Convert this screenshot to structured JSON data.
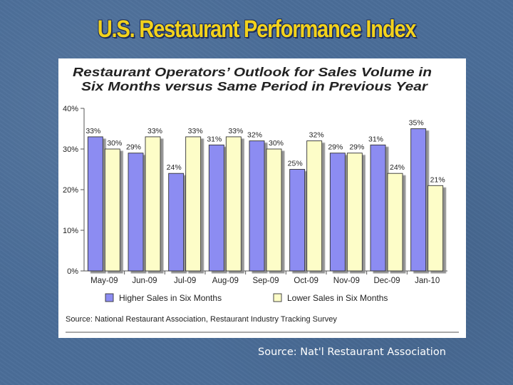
{
  "slide": {
    "title": "U.S. Restaurant Performance Index",
    "source_note": "Source: Nat'l Restaurant Association"
  },
  "chart_data": {
    "type": "bar",
    "title_line1": "Restaurant Operators’ Outlook for Sales Volume in",
    "title_line2": "Six Months versus Same Period in Previous Year",
    "categories": [
      "May-09",
      "Jun-09",
      "Jul-09",
      "Aug-09",
      "Sep-09",
      "Oct-09",
      "Nov-09",
      "Dec-09",
      "Jan-10"
    ],
    "series": [
      {
        "name": "Higher Sales in Six Months",
        "color": "#8c8cf2",
        "values": [
          33,
          29,
          24,
          31,
          32,
          25,
          29,
          31,
          35
        ]
      },
      {
        "name": "Lower Sales in Six Months",
        "color": "#fdfdc8",
        "values": [
          30,
          33,
          33,
          33,
          30,
          32,
          29,
          24,
          21
        ]
      }
    ],
    "value_suffix": "%",
    "ylim": [
      0,
      40
    ],
    "yticks": [
      "0%",
      "10%",
      "20%",
      "30%",
      "40%"
    ],
    "legend_position": "bottom",
    "source": "Source: National Restaurant Association, Restaurant Industry Tracking Survey"
  }
}
